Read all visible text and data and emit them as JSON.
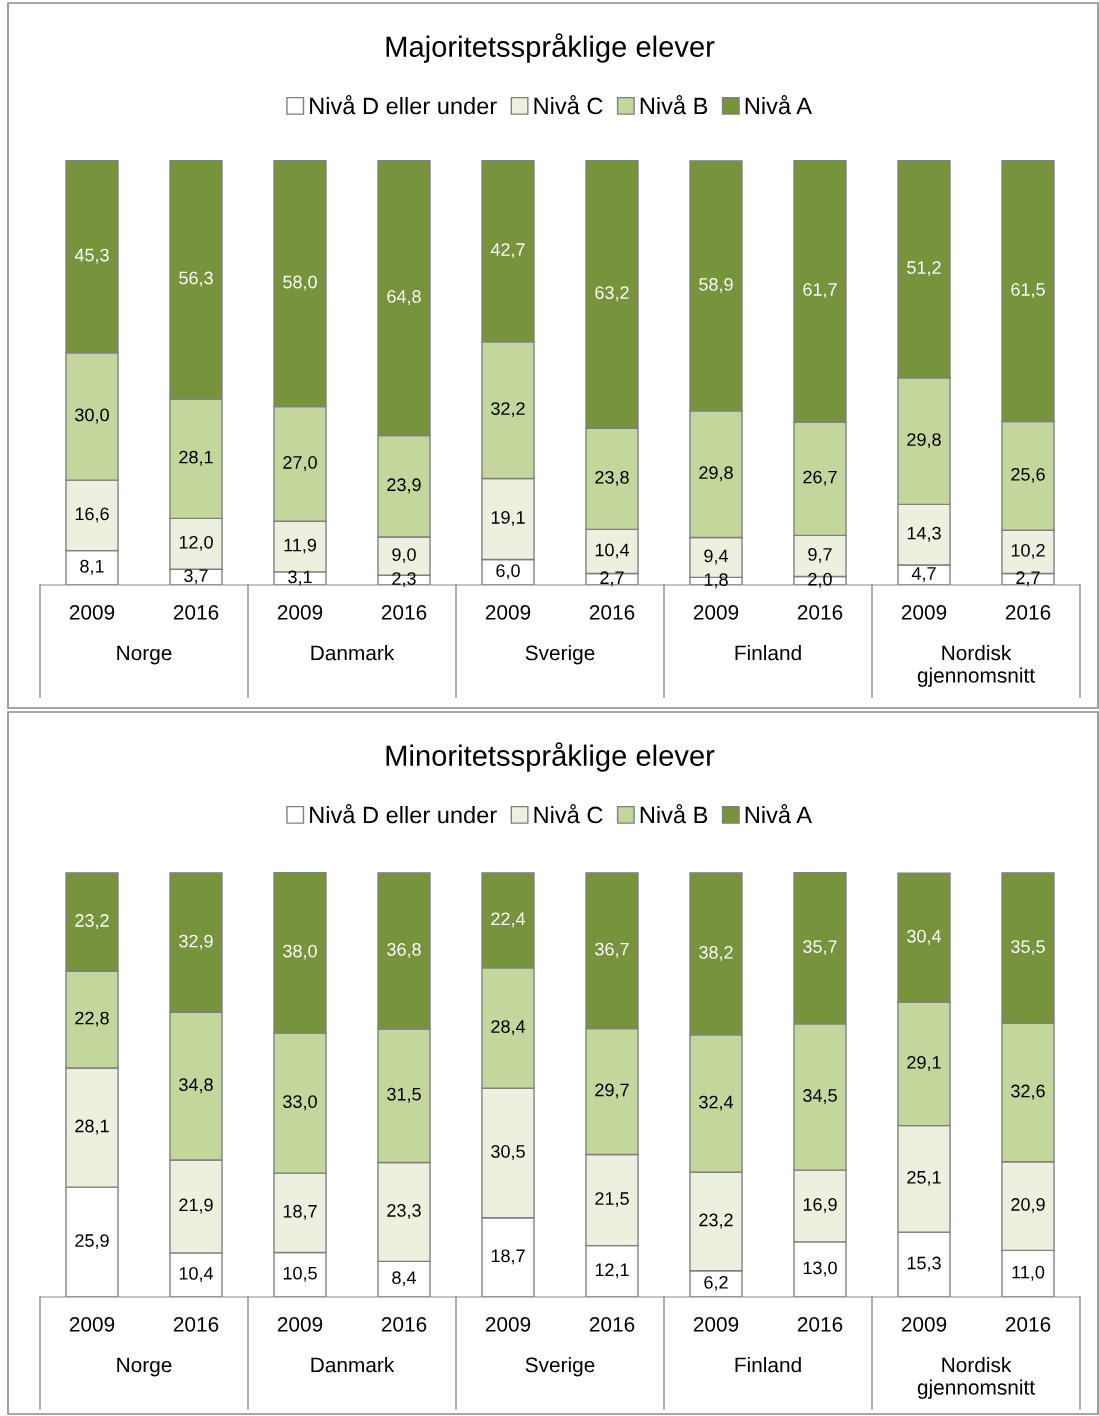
{
  "chart_data": [
    {
      "type": "bar",
      "stacked": true,
      "title": "Majoritetsspråklige elever",
      "legend": "top",
      "tick_labels": "x",
      "categories": [
        "2009",
        "2016",
        "2009",
        "2016",
        "2009",
        "2016",
        "2009",
        "2016",
        "2009",
        "2016"
      ],
      "annotations": [
        "Norge",
        "Danmark",
        "Sverige",
        "Finland",
        "Nordisk gjennomsnitt"
      ],
      "series": [
        {
          "name": "Nivå D eller under",
          "color": "#ffffff",
          "values": [
            8.1,
            3.7,
            3.1,
            2.3,
            6.0,
            2.7,
            1.8,
            2.0,
            4.7,
            2.7
          ],
          "value_labels": [
            "8,1",
            "3,7",
            "3,1",
            "2,3",
            "6,0",
            "2,7",
            "1,8",
            "2,0",
            "4,7",
            "2,7"
          ]
        },
        {
          "name": "Nivå C",
          "color": "#ebf1de",
          "values": [
            16.6,
            12.0,
            11.9,
            9.0,
            19.1,
            10.4,
            9.4,
            9.7,
            14.3,
            10.2
          ],
          "value_labels": [
            "16,6",
            "12,0",
            "11,9",
            "9,0",
            "19,1",
            "10,4",
            "9,4",
            "9,7",
            "14,3",
            "10,2"
          ]
        },
        {
          "name": "Nivå B",
          "color": "#c3d69b",
          "values": [
            30.0,
            28.1,
            27.0,
            23.9,
            32.2,
            23.8,
            29.8,
            26.7,
            29.8,
            25.6
          ],
          "value_labels": [
            "30,0",
            "28,1",
            "27,0",
            "23,9",
            "32,2",
            "23,8",
            "29,8",
            "26,7",
            "29,8",
            "25,6"
          ]
        },
        {
          "name": "Nivå A",
          "color": "#77933c",
          "values": [
            45.3,
            56.3,
            58.0,
            64.8,
            42.7,
            63.2,
            58.9,
            61.7,
            51.2,
            61.5
          ],
          "value_labels": [
            "45,3",
            "56,3",
            "58,0",
            "64,8",
            "42,7",
            "63,2",
            "58,9",
            "61,7",
            "51,2",
            "61,5"
          ]
        }
      ]
    },
    {
      "type": "bar",
      "stacked": true,
      "title": "Minoritetsspråklige elever",
      "legend": "top",
      "tick_labels": "x",
      "categories": [
        "2009",
        "2016",
        "2009",
        "2016",
        "2009",
        "2016",
        "2009",
        "2016",
        "2009",
        "2016"
      ],
      "annotations": [
        "Norge",
        "Danmark",
        "Sverige",
        "Finland",
        "Nordisk gjennomsnitt"
      ],
      "series": [
        {
          "name": "Nivå D eller under",
          "color": "#ffffff",
          "values": [
            25.9,
            10.4,
            10.5,
            8.4,
            18.7,
            12.1,
            6.2,
            13.0,
            15.3,
            11.0
          ],
          "value_labels": [
            "25,9",
            "10,4",
            "10,5",
            "8,4",
            "18,7",
            "12,1",
            "6,2",
            "13,0",
            "15,3",
            "11,0"
          ]
        },
        {
          "name": "Nivå C",
          "color": "#ebf1de",
          "values": [
            28.1,
            21.9,
            18.7,
            23.3,
            30.5,
            21.5,
            23.2,
            16.9,
            25.1,
            20.9
          ],
          "value_labels": [
            "28,1",
            "21,9",
            "18,7",
            "23,3",
            "30,5",
            "21,5",
            "23,2",
            "16,9",
            "25,1",
            "20,9"
          ]
        },
        {
          "name": "Nivå B",
          "color": "#c3d69b",
          "values": [
            22.8,
            34.8,
            33.0,
            31.5,
            28.4,
            29.7,
            32.4,
            34.5,
            29.1,
            32.6
          ],
          "value_labels": [
            "22,8",
            "34,8",
            "33,0",
            "31,5",
            "28,4",
            "29,7",
            "32,4",
            "34,5",
            "29,1",
            "32,6"
          ]
        },
        {
          "name": "Nivå A",
          "color": "#77933c",
          "values": [
            23.2,
            32.9,
            38.0,
            36.8,
            22.4,
            36.7,
            38.2,
            35.7,
            30.4,
            35.5
          ],
          "value_labels": [
            "23,2",
            "32,9",
            "38,0",
            "36,8",
            "22,4",
            "36,7",
            "38,2",
            "35,7",
            "30,4",
            "35,5"
          ]
        }
      ]
    }
  ]
}
